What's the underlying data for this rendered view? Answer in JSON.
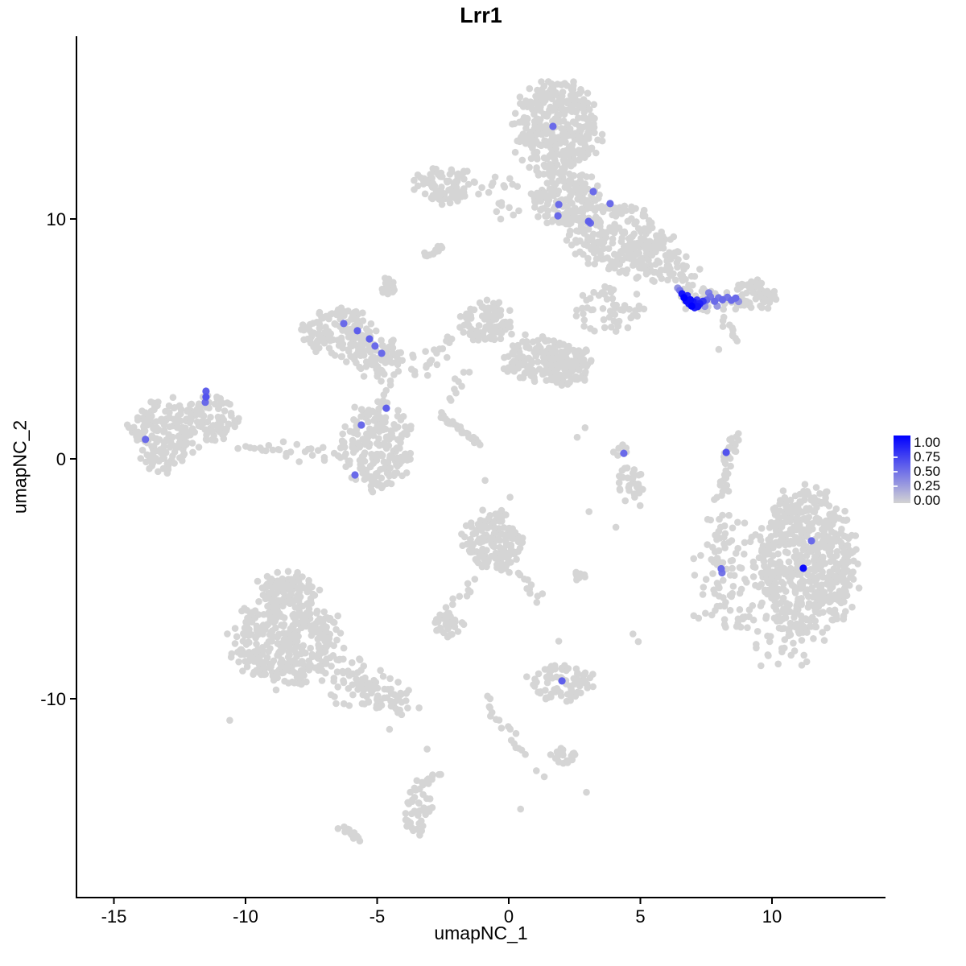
{
  "title": "Lrr1",
  "axes": {
    "x": {
      "label": "umapNC_1",
      "ticks": [
        -15,
        -10,
        -5,
        0,
        5,
        10
      ]
    },
    "y": {
      "label": "umapNC_2",
      "ticks": [
        -10,
        0,
        10
      ]
    }
  },
  "legend": {
    "labels": [
      "1.00",
      "0.75",
      "0.50",
      "0.25",
      "0.00"
    ],
    "color_high": "#0000FF",
    "color_low": "#D3D3D3"
  },
  "chart_data": {
    "type": "scatter",
    "title": "Lrr1",
    "xlabel": "umapNC_1",
    "ylabel": "umapNC_2",
    "xlim": [
      -16.4,
      14.3
    ],
    "ylim": [
      -18.3,
      17.6
    ],
    "grid": false,
    "legend_position": "right",
    "gray_color": "#D5D5D5",
    "color_low": "#D3D3D3",
    "color_high": "#0000FF",
    "point_radius": 4.3,
    "highlight_radius": 4.6,
    "clusters": [
      {
        "name": "top-head",
        "cx": 1.83,
        "cy": 13.8,
        "rx": 1.55,
        "ry": 1.9,
        "n": 380
      },
      {
        "name": "top-body-1",
        "cx": 2.23,
        "cy": 10.9,
        "rx": 1.25,
        "ry": 1.2,
        "n": 160
      },
      {
        "name": "top-body-2",
        "cx": 3.9,
        "cy": 9.4,
        "rx": 1.7,
        "ry": 1.3,
        "n": 170
      },
      {
        "name": "top-body-3",
        "cx": 5.3,
        "cy": 8.4,
        "rx": 1.4,
        "ry": 0.95,
        "n": 110
      },
      {
        "name": "top-left-satellite",
        "cx": -2.45,
        "cy": 11.4,
        "rx": 1.05,
        "ry": 0.75,
        "n": 85
      },
      {
        "name": "blue-strip-base-left",
        "cx": 7.6,
        "cy": 6.64,
        "rx": 1.3,
        "ry": 0.5,
        "n": 45
      },
      {
        "name": "blue-strip-base-right",
        "cx": 9.3,
        "cy": 6.85,
        "rx": 0.9,
        "ry": 0.6,
        "n": 70
      },
      {
        "name": "left-band",
        "cx": -6.5,
        "cy": 5.2,
        "rx": 1.3,
        "ry": 1.05,
        "n": 130
      },
      {
        "name": "left-band-2",
        "cx": -4.95,
        "cy": 4.2,
        "rx": 0.9,
        "ry": 0.85,
        "n": 70
      },
      {
        "name": "central-left-lobe",
        "cx": -0.85,
        "cy": 5.65,
        "rx": 1.0,
        "ry": 0.85,
        "n": 95
      },
      {
        "name": "central-mid",
        "cx": 1.3,
        "cy": 4.15,
        "rx": 1.4,
        "ry": 0.95,
        "n": 140
      },
      {
        "name": "central-right-knot",
        "cx": 2.25,
        "cy": 3.95,
        "rx": 0.85,
        "ry": 0.8,
        "n": 90
      },
      {
        "name": "central-upper-arm",
        "cx": 3.75,
        "cy": 6.2,
        "rx": 1.3,
        "ry": 1.0,
        "n": 55
      },
      {
        "name": "mini-blob-above-central",
        "cx": -4.65,
        "cy": 7.2,
        "rx": 0.35,
        "ry": 0.35,
        "n": 16
      },
      {
        "name": "left-main-head",
        "cx": -13.05,
        "cy": 1.0,
        "rx": 1.3,
        "ry": 1.4,
        "n": 170
      },
      {
        "name": "left-main-right",
        "cx": -11.3,
        "cy": 1.7,
        "rx": 0.95,
        "ry": 0.95,
        "n": 90
      },
      {
        "name": "mid-left-round",
        "cx": -5.0,
        "cy": 0.5,
        "rx": 1.4,
        "ry": 1.75,
        "n": 200
      },
      {
        "name": "island-a",
        "cx": 4.25,
        "cy": 0.35,
        "rx": 0.3,
        "ry": 0.25,
        "n": 8
      },
      {
        "name": "island-crescent",
        "cx": 4.55,
        "cy": -1.0,
        "rx": 0.55,
        "ry": 0.85,
        "n": 30
      },
      {
        "name": "bottom-right-main",
        "cx": 11.3,
        "cy": -4.4,
        "rx": 1.85,
        "ry": 2.95,
        "n": 600
      },
      {
        "name": "bottom-left-head",
        "cx": -8.4,
        "cy": -5.5,
        "rx": 1.1,
        "ry": 0.75,
        "n": 110
      },
      {
        "name": "bottom-left-body",
        "cx": -8.45,
        "cy": -7.7,
        "rx": 2.0,
        "ry": 1.75,
        "n": 380
      },
      {
        "name": "center-bottom",
        "cx": -0.6,
        "cy": -3.4,
        "rx": 1.05,
        "ry": 1.3,
        "n": 150
      },
      {
        "name": "center-bottom-left-blob",
        "cx": -2.25,
        "cy": -6.9,
        "rx": 0.55,
        "ry": 0.55,
        "n": 35
      },
      {
        "name": "island-b",
        "cx": 2.7,
        "cy": -4.9,
        "rx": 0.3,
        "ry": 0.25,
        "n": 10
      },
      {
        "name": "lrr1-bottom-blob",
        "cx": 2.0,
        "cy": -9.3,
        "rx": 1.2,
        "ry": 0.8,
        "n": 75
      },
      {
        "name": "bottom-trail-blob",
        "cx": 2.1,
        "cy": -12.35,
        "rx": 0.5,
        "ry": 0.35,
        "n": 22
      },
      {
        "name": "bottom-small-vertical",
        "cx": -3.45,
        "cy": -14.6,
        "rx": 0.5,
        "ry": 1.35,
        "n": 50
      }
    ],
    "trails": [
      {
        "x1": -1.35,
        "y1": 11.2,
        "x2": 0.4,
        "y2": 11.6,
        "n": 12,
        "j": 0.2
      },
      {
        "x1": -0.6,
        "y1": 10.5,
        "x2": 0.3,
        "y2": 10.2,
        "n": 8,
        "j": 0.25
      },
      {
        "x1": 5.9,
        "y1": 7.95,
        "x2": 7.2,
        "y2": 7.45,
        "n": 22,
        "j": 0.3
      },
      {
        "x1": 8.05,
        "y1": 5.85,
        "x2": 8.75,
        "y2": 4.9,
        "n": 10,
        "j": 0.12
      },
      {
        "x1": -3.9,
        "y1": 4.0,
        "x2": -2.5,
        "y2": 3.7,
        "n": 12,
        "j": 0.25
      },
      {
        "x1": -3.3,
        "y1": 4.3,
        "x2": -1.9,
        "y2": 5.0,
        "n": 10,
        "j": 0.2
      },
      {
        "x1": -4.9,
        "y1": 4.1,
        "x2": -4.6,
        "y2": 2.05,
        "n": 12,
        "j": 0.15
      },
      {
        "x1": -3.2,
        "y1": 8.45,
        "x2": -2.5,
        "y2": 8.85,
        "n": 12,
        "j": 0.08
      },
      {
        "x1": -1.6,
        "y1": 3.8,
        "x2": -2.4,
        "y2": 2.3,
        "n": 9,
        "j": 0.2
      },
      {
        "x1": -2.65,
        "y1": 1.85,
        "x2": -1.05,
        "y2": 0.6,
        "n": 30,
        "j": 0.06
      },
      {
        "x1": -10.1,
        "y1": 0.45,
        "x2": -6.4,
        "y2": 0.15,
        "n": 28,
        "j": 0.2
      },
      {
        "x1": 8.6,
        "y1": 1.05,
        "x2": 8.25,
        "y2": -0.3,
        "n": 20,
        "j": 0.12
      },
      {
        "x1": 8.2,
        "y1": -0.4,
        "x2": 7.95,
        "y2": -1.75,
        "n": 13,
        "j": 0.12
      },
      {
        "x1": 8.3,
        "y1": -2.4,
        "x2": 7.8,
        "y2": -4.5,
        "n": 38,
        "j": 0.4
      },
      {
        "x1": 7.85,
        "y1": -4.6,
        "x2": 8.6,
        "y2": -7.2,
        "n": 42,
        "j": 0.45
      },
      {
        "x1": 9.25,
        "y1": -3.0,
        "x2": 9.35,
        "y2": -6.6,
        "n": 30,
        "j": 0.5
      },
      {
        "x1": 9.4,
        "y1": -7.6,
        "x2": 11.4,
        "y2": -8.15,
        "n": 22,
        "j": 0.35
      },
      {
        "x1": -6.4,
        "y1": -8.9,
        "x2": -3.95,
        "y2": -10.45,
        "n": 90,
        "j": 0.5
      },
      {
        "x1": 0.3,
        "y1": -4.6,
        "x2": 1.2,
        "y2": -5.9,
        "n": 12,
        "j": 0.15
      },
      {
        "x1": -1.35,
        "y1": -5.0,
        "x2": -2.4,
        "y2": -6.5,
        "n": 10,
        "j": 0.12
      },
      {
        "x1": -0.85,
        "y1": -9.9,
        "x2": 0.5,
        "y2": -12.5,
        "n": 18,
        "j": 0.15
      },
      {
        "x1": -2.6,
        "y1": -13.0,
        "x2": -3.3,
        "y2": -13.6,
        "n": 9,
        "j": 0.1
      },
      {
        "x1": -6.4,
        "y1": -15.3,
        "x2": -5.6,
        "y2": -15.9,
        "n": 12,
        "j": 0.08
      }
    ],
    "singles": [
      [
        7.98,
        4.56
      ],
      [
        4.99,
        -1.95
      ],
      [
        4.07,
        -2.85
      ],
      [
        4.72,
        -7.3
      ],
      [
        4.92,
        -7.62
      ],
      [
        8.35,
        -1.35
      ],
      [
        2.9,
        1.3
      ],
      [
        2.6,
        0.9
      ],
      [
        -0.9,
        -0.9
      ],
      [
        0.05,
        -1.6
      ],
      [
        -0.5,
        -2.3
      ],
      [
        1.9,
        -7.6
      ],
      [
        1.05,
        -13.0
      ],
      [
        1.35,
        -13.25
      ],
      [
        -10.6,
        -10.9
      ],
      [
        -3.1,
        -12.1
      ],
      [
        2.95,
        -13.9
      ],
      [
        0.45,
        -14.6
      ],
      [
        3.05,
        -2.2
      ]
    ],
    "highlights": [
      {
        "x": 6.58,
        "y": 6.88,
        "v": 0.9
      },
      {
        "x": 6.66,
        "y": 6.72,
        "v": 1.0
      },
      {
        "x": 6.74,
        "y": 6.58,
        "v": 0.95
      },
      {
        "x": 6.84,
        "y": 6.47,
        "v": 0.9
      },
      {
        "x": 6.95,
        "y": 6.37,
        "v": 1.0
      },
      {
        "x": 7.06,
        "y": 6.3,
        "v": 0.85
      },
      {
        "x": 7.18,
        "y": 6.35,
        "v": 0.9
      },
      {
        "x": 7.08,
        "y": 6.52,
        "v": 0.8
      },
      {
        "x": 6.9,
        "y": 6.63,
        "v": 0.95
      },
      {
        "x": 7.26,
        "y": 6.47,
        "v": 0.85
      },
      {
        "x": 7.38,
        "y": 6.57,
        "v": 0.75
      },
      {
        "x": 6.79,
        "y": 6.8,
        "v": 0.8
      },
      {
        "x": 7.0,
        "y": 6.55,
        "v": 0.9
      },
      {
        "x": 7.15,
        "y": 6.62,
        "v": 0.7
      },
      {
        "x": 7.52,
        "y": 6.62,
        "v": 0.5
      },
      {
        "x": 7.66,
        "y": 6.76,
        "v": 0.45
      },
      {
        "x": 7.82,
        "y": 6.57,
        "v": 0.5
      },
      {
        "x": 7.97,
        "y": 6.71,
        "v": 0.45
      },
      {
        "x": 8.12,
        "y": 6.63,
        "v": 0.5
      },
      {
        "x": 8.31,
        "y": 6.73,
        "v": 0.45
      },
      {
        "x": 8.46,
        "y": 6.61,
        "v": 0.5
      },
      {
        "x": 7.6,
        "y": 6.92,
        "v": 0.4
      },
      {
        "x": 6.5,
        "y": 7.02,
        "v": 0.45
      },
      {
        "x": 8.62,
        "y": 6.7,
        "v": 0.5
      },
      {
        "x": 7.45,
        "y": 6.36,
        "v": 0.3
      },
      {
        "x": 7.92,
        "y": 6.37,
        "v": 0.28
      },
      {
        "x": 6.42,
        "y": 7.12,
        "v": 0.3
      },
      {
        "x": 8.73,
        "y": 6.56,
        "v": 0.3
      },
      {
        "x": 1.68,
        "y": 13.86,
        "v": 0.5
      },
      {
        "x": 3.21,
        "y": 11.14,
        "v": 0.5
      },
      {
        "x": 3.85,
        "y": 10.64,
        "v": 0.5
      },
      {
        "x": 1.9,
        "y": 10.6,
        "v": 0.5
      },
      {
        "x": 1.87,
        "y": 10.13,
        "v": 0.5
      },
      {
        "x": 3.03,
        "y": 9.9,
        "v": 0.55
      },
      {
        "x": 3.1,
        "y": 9.83,
        "v": 0.5
      },
      {
        "x": -6.27,
        "y": 5.64,
        "v": 0.5
      },
      {
        "x": -5.75,
        "y": 5.34,
        "v": 0.55
      },
      {
        "x": -5.29,
        "y": 5.0,
        "v": 0.55
      },
      {
        "x": -5.08,
        "y": 4.7,
        "v": 0.5
      },
      {
        "x": -4.83,
        "y": 4.4,
        "v": 0.5
      },
      {
        "x": -4.65,
        "y": 2.11,
        "v": 0.55
      },
      {
        "x": -5.6,
        "y": 1.41,
        "v": 0.5
      },
      {
        "x": -5.84,
        "y": -0.67,
        "v": 0.5
      },
      {
        "x": -11.5,
        "y": 2.82,
        "v": 0.55
      },
      {
        "x": -11.5,
        "y": 2.58,
        "v": 0.6
      },
      {
        "x": -11.53,
        "y": 2.36,
        "v": 0.5
      },
      {
        "x": -13.8,
        "y": 0.81,
        "v": 0.5
      },
      {
        "x": 4.37,
        "y": 0.23,
        "v": 0.5
      },
      {
        "x": 8.26,
        "y": 0.27,
        "v": 0.6
      },
      {
        "x": 2.02,
        "y": -9.26,
        "v": 0.55
      },
      {
        "x": 11.5,
        "y": -3.42,
        "v": 0.5
      },
      {
        "x": 11.19,
        "y": -4.56,
        "v": 0.95
      },
      {
        "x": 8.07,
        "y": -4.58,
        "v": 0.5
      },
      {
        "x": 8.1,
        "y": -4.75,
        "v": 0.45
      }
    ]
  }
}
